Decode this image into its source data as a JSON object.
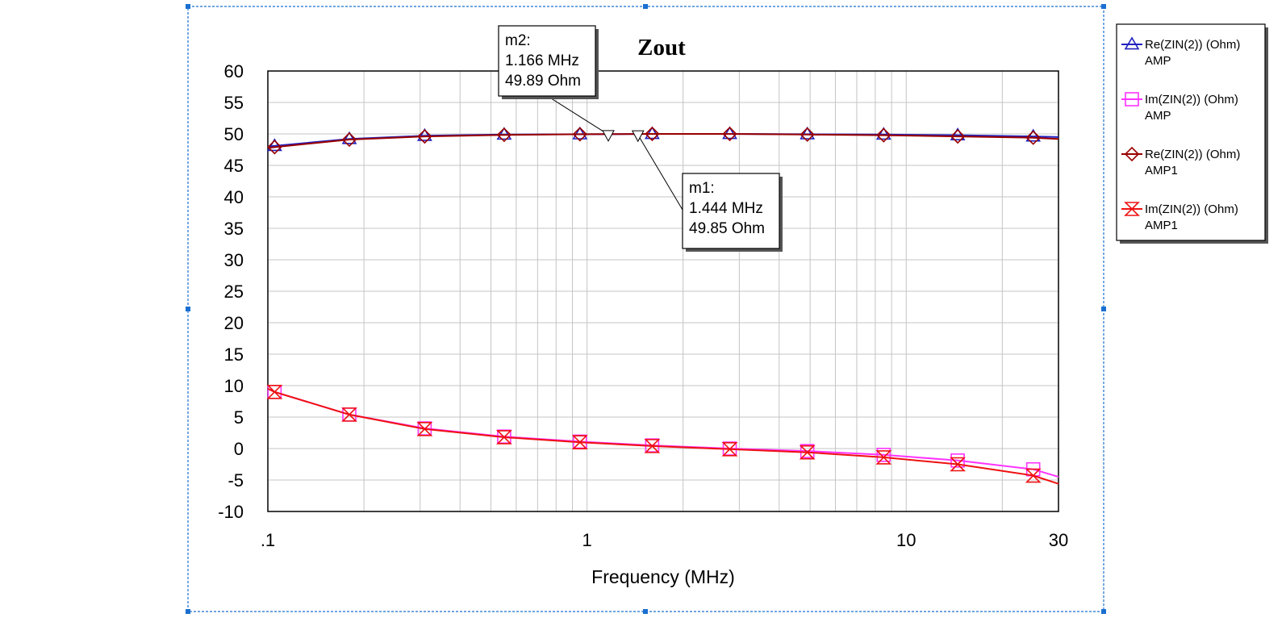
{
  "chart_data": {
    "type": "line",
    "title": "Zout",
    "xlabel": "Frequency (MHz)",
    "ylabel": "",
    "x_scale": "log",
    "xlim": [
      0.1,
      30
    ],
    "ylim": [
      -10,
      60
    ],
    "x_tick_values": [
      0.1,
      1,
      10,
      30
    ],
    "x_tick_labels": [
      ".1",
      "1",
      "10",
      "30"
    ],
    "y_ticks": [
      60,
      55,
      50,
      45,
      40,
      35,
      30,
      25,
      20,
      15,
      10,
      5,
      0,
      -5,
      -10
    ],
    "grid": true,
    "legend_position": "right",
    "series": [
      {
        "name": "Re(ZIN(2)) (Ohm)",
        "sub": "AMP",
        "color": "#2020c0",
        "marker": "triangle-up",
        "x": [
          0.1,
          0.18,
          0.31,
          0.55,
          0.95,
          1.6,
          2.8,
          4.9,
          8.5,
          14.5,
          25,
          30
        ],
        "y": [
          48.0,
          49.2,
          49.7,
          49.9,
          49.95,
          50.0,
          50.0,
          49.95,
          49.9,
          49.8,
          49.6,
          49.5
        ]
      },
      {
        "name": "Im(ZIN(2)) (Ohm)",
        "sub": "AMP",
        "color": "#ff33ff",
        "marker": "square",
        "x": [
          0.1,
          0.105,
          0.18,
          0.31,
          0.55,
          0.95,
          1.6,
          2.8,
          4.9,
          8.5,
          14.5,
          25,
          30
        ],
        "y": [
          9.5,
          9.0,
          5.4,
          3.2,
          1.9,
          1.1,
          0.5,
          0.0,
          -0.4,
          -1.0,
          -1.9,
          -3.3,
          -4.5
        ]
      },
      {
        "name": "Re(ZIN(2)) (Ohm)",
        "sub": "AMP1",
        "color": "#990000",
        "marker": "diamond",
        "x": [
          0.1,
          0.18,
          0.31,
          0.55,
          0.95,
          1.6,
          2.8,
          4.9,
          8.5,
          14.5,
          25,
          30
        ],
        "y": [
          47.8,
          49.1,
          49.6,
          49.85,
          49.95,
          50.0,
          50.0,
          49.9,
          49.8,
          49.6,
          49.4,
          49.2
        ]
      },
      {
        "name": "Im(ZIN(2)) (Ohm)",
        "sub": "AMP1",
        "color": "#ee1111",
        "marker": "hourglass",
        "x": [
          0.1,
          0.105,
          0.18,
          0.31,
          0.55,
          0.95,
          1.6,
          2.8,
          4.9,
          8.5,
          14.5,
          25,
          30
        ],
        "y": [
          9.5,
          9.0,
          5.4,
          3.1,
          1.8,
          1.0,
          0.4,
          -0.1,
          -0.6,
          -1.4,
          -2.5,
          -4.3,
          -5.6
        ]
      }
    ],
    "markers": [
      {
        "name": "m2:",
        "freq_text": "1.166 MHz",
        "value_text": "49.89 Ohm",
        "x": 1.166,
        "y": 49.89
      },
      {
        "name": "m1:",
        "freq_text": "1.444 MHz",
        "value_text": "49.85 Ohm",
        "x": 1.444,
        "y": 49.85
      }
    ]
  }
}
